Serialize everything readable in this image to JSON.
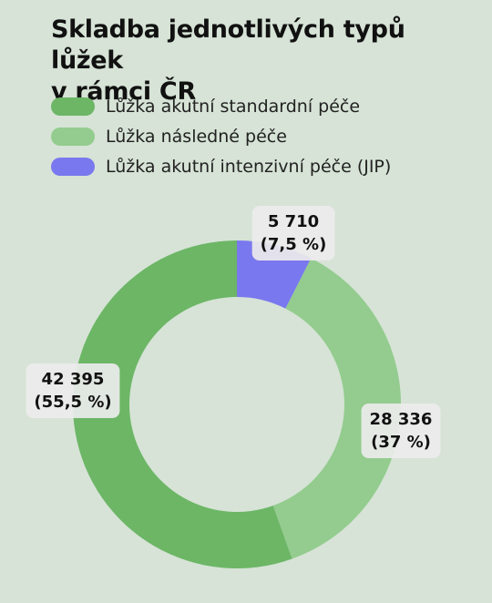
{
  "title_lines": [
    "Skladba jednotlivých typů lůžek",
    "v rámci ČR"
  ],
  "chart_data": {
    "type": "pie",
    "donut": true,
    "title": "Skladba jednotlivých typů lůžek v rámci ČR",
    "legend_position": "top-left",
    "slices": [
      {
        "label": "Lůžka akutní intenzivní péče (JIP)",
        "value": 5710,
        "value_text": "5 710",
        "percent_text": "(7,5 %)",
        "color": "#7a78ee"
      },
      {
        "label": "Lůžka následné péče",
        "value": 28336,
        "value_text": "28 336",
        "percent_text": "(37 %)",
        "color": "#93cc8e"
      },
      {
        "label": "Lůžka akutní standardní péče",
        "value": 42395,
        "value_text": "42 395",
        "percent_text": "(55,5 %)",
        "color": "#6cb666"
      }
    ]
  },
  "legend": [
    {
      "label": "Lůžka akutní standardní péče",
      "color": "#6cb666"
    },
    {
      "label": "Lůžka následné péče",
      "color": "#93cc8e"
    },
    {
      "label": "Lůžka akutní intenzivní péče (JIP)",
      "color": "#7a78ee"
    }
  ]
}
